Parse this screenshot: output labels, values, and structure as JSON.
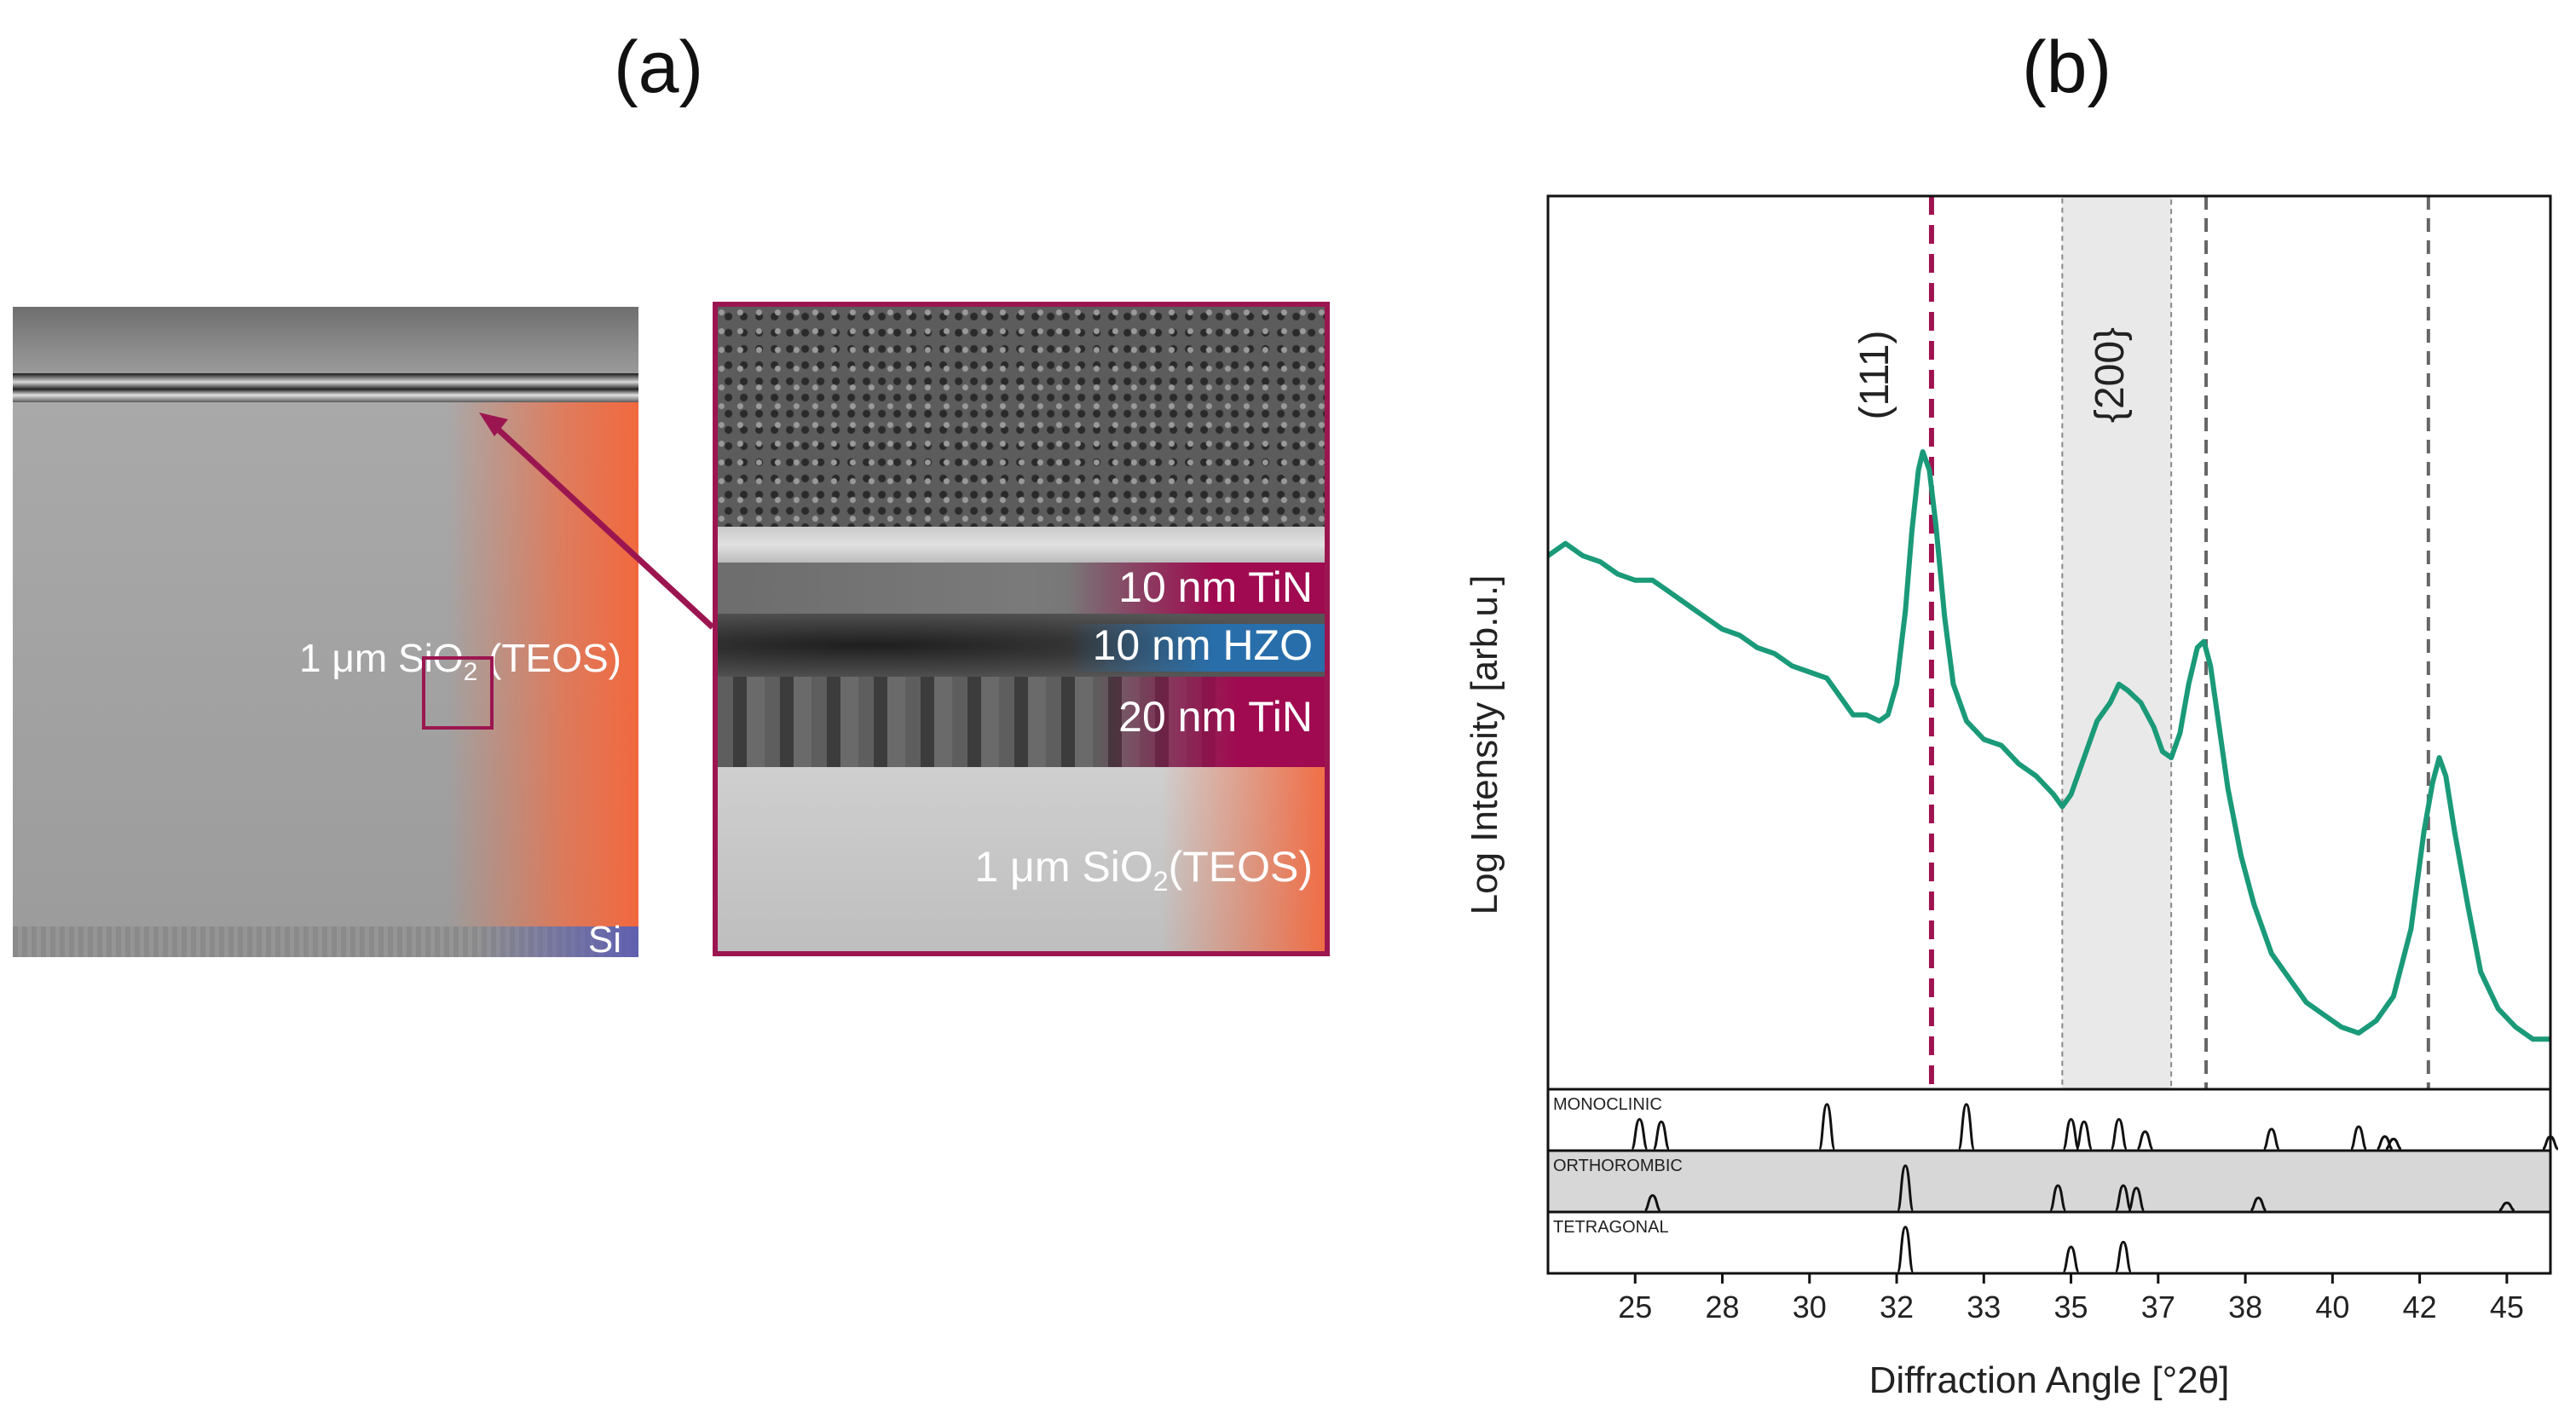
{
  "panels": {
    "a_label": "(a)",
    "b_label": "(b)"
  },
  "sem": {
    "overview_oxide_label": "1 μm SiO",
    "overview_oxide_sub": "2",
    "overview_oxide_tail": " (TEOS)",
    "overview_si_label": "Si",
    "zoom_tin_top_label": "10 nm TiN",
    "zoom_hzo_label": "10 nm HZO",
    "zoom_tin_bottom_label": "20 nm TiN",
    "zoom_oxide_label": "1 μm SiO",
    "zoom_oxide_sub": "2",
    "zoom_oxide_tail": "(TEOS)",
    "colors": {
      "highlight": "#9b1650",
      "oxide": "#f2683e",
      "hzo": "#2b6fa8",
      "substrate": "#5a5ab4"
    }
  },
  "chart_data": {
    "type": "line",
    "xlabel": "Diffraction Angle [°2θ]",
    "ylabel": "Log Intensity [arb.u.]",
    "xlim": [
      22.0,
      45.0
    ],
    "ylim": [
      0,
      1
    ],
    "xticks": [
      25,
      28,
      30,
      32,
      33,
      35,
      37,
      38,
      40,
      42,
      45
    ],
    "series": [
      {
        "color": "#1a9a78",
        "points": [
          [
            22.0,
            0.83
          ],
          [
            22.4,
            0.85
          ],
          [
            22.8,
            0.83
          ],
          [
            23.2,
            0.82
          ],
          [
            23.6,
            0.8
          ],
          [
            24.0,
            0.79
          ],
          [
            24.4,
            0.79
          ],
          [
            24.8,
            0.77
          ],
          [
            25.2,
            0.75
          ],
          [
            25.6,
            0.73
          ],
          [
            26.0,
            0.71
          ],
          [
            26.4,
            0.7
          ],
          [
            26.8,
            0.68
          ],
          [
            27.2,
            0.67
          ],
          [
            27.6,
            0.65
          ],
          [
            28.0,
            0.64
          ],
          [
            28.4,
            0.63
          ],
          [
            28.7,
            0.6
          ],
          [
            29.0,
            0.57
          ],
          [
            29.3,
            0.57
          ],
          [
            29.6,
            0.56
          ],
          [
            29.8,
            0.57
          ],
          [
            30.0,
            0.62
          ],
          [
            30.2,
            0.74
          ],
          [
            30.35,
            0.87
          ],
          [
            30.5,
            0.97
          ],
          [
            30.6,
            1.0
          ],
          [
            30.75,
            0.97
          ],
          [
            30.9,
            0.88
          ],
          [
            31.1,
            0.73
          ],
          [
            31.3,
            0.62
          ],
          [
            31.6,
            0.56
          ],
          [
            32.0,
            0.53
          ],
          [
            32.4,
            0.52
          ],
          [
            32.8,
            0.49
          ],
          [
            33.2,
            0.47
          ],
          [
            33.6,
            0.44
          ],
          [
            33.8,
            0.42
          ],
          [
            34.0,
            0.44
          ],
          [
            34.3,
            0.5
          ],
          [
            34.6,
            0.56
          ],
          [
            34.9,
            0.59
          ],
          [
            35.1,
            0.62
          ],
          [
            35.3,
            0.61
          ],
          [
            35.6,
            0.59
          ],
          [
            35.9,
            0.55
          ],
          [
            36.1,
            0.51
          ],
          [
            36.3,
            0.5
          ],
          [
            36.5,
            0.54
          ],
          [
            36.7,
            0.62
          ],
          [
            36.9,
            0.68
          ],
          [
            37.05,
            0.69
          ],
          [
            37.2,
            0.65
          ],
          [
            37.4,
            0.55
          ],
          [
            37.6,
            0.45
          ],
          [
            37.9,
            0.34
          ],
          [
            38.2,
            0.26
          ],
          [
            38.6,
            0.18
          ],
          [
            39.0,
            0.14
          ],
          [
            39.4,
            0.1
          ],
          [
            39.8,
            0.08
          ],
          [
            40.2,
            0.06
          ],
          [
            40.6,
            0.05
          ],
          [
            41.0,
            0.07
          ],
          [
            41.4,
            0.11
          ],
          [
            41.8,
            0.22
          ],
          [
            42.1,
            0.38
          ],
          [
            42.3,
            0.46
          ],
          [
            42.45,
            0.5
          ],
          [
            42.6,
            0.47
          ],
          [
            42.8,
            0.38
          ],
          [
            43.1,
            0.26
          ],
          [
            43.4,
            0.15
          ],
          [
            43.8,
            0.09
          ],
          [
            44.2,
            0.06
          ],
          [
            44.6,
            0.04
          ],
          [
            45.0,
            0.04
          ]
        ]
      }
    ],
    "reference_lines": [
      {
        "x": 30.8,
        "color": "#a0134f",
        "style": "dashed"
      },
      {
        "x": 37.1,
        "color": "#666666",
        "style": "dashed"
      },
      {
        "x": 42.2,
        "color": "#666666",
        "style": "dashed"
      }
    ],
    "shaded_region": {
      "x": [
        33.8,
        36.3
      ],
      "color": "#e9e9e9"
    },
    "annotations": [
      {
        "text": "(111)",
        "x": 29.8,
        "color": "#a0134f"
      },
      {
        "text": "{200}",
        "x": 35.2,
        "color": "#a0134f"
      }
    ],
    "reference_patterns": [
      {
        "name": "MONOCLINIC",
        "background": "#ffffff",
        "peaks": [
          [
            24.1,
            0.6
          ],
          [
            24.6,
            0.55
          ],
          [
            28.4,
            0.9
          ],
          [
            31.6,
            0.9
          ],
          [
            34.0,
            0.6
          ],
          [
            34.3,
            0.55
          ],
          [
            35.1,
            0.6
          ],
          [
            35.7,
            0.35
          ],
          [
            38.6,
            0.4
          ],
          [
            40.6,
            0.45
          ],
          [
            41.2,
            0.25
          ],
          [
            41.4,
            0.2
          ],
          [
            45.0,
            0.25
          ]
        ]
      },
      {
        "name": "ORTHOROMBIC",
        "background": "#d7d7d7",
        "peaks": [
          [
            24.4,
            0.3
          ],
          [
            30.2,
            0.9
          ],
          [
            33.7,
            0.5
          ],
          [
            35.2,
            0.5
          ],
          [
            35.5,
            0.45
          ],
          [
            38.3,
            0.25
          ],
          [
            44.0,
            0.15
          ]
        ]
      },
      {
        "name": "TETRAGONAL",
        "background": "#ffffff",
        "peaks": [
          [
            30.2,
            0.9
          ],
          [
            34.0,
            0.5
          ],
          [
            35.2,
            0.6
          ]
        ]
      }
    ]
  }
}
